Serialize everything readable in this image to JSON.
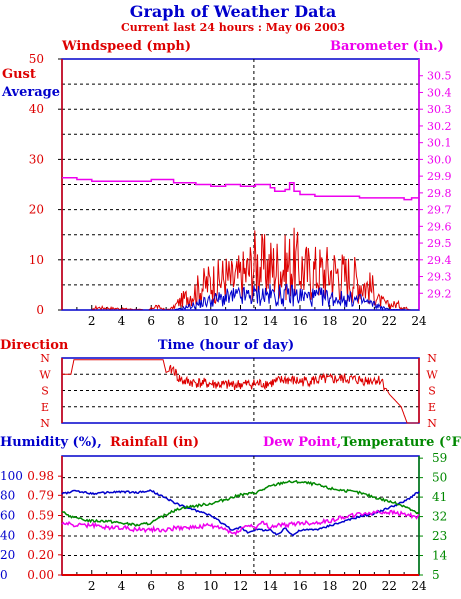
{
  "title": "Graph of Weather Data",
  "subtitle": "Current last 24 hours : May 06 2003",
  "colors": {
    "blue": "#0000cc",
    "red": "#dd0000",
    "magenta": "#ee00ee",
    "green": "#008800",
    "grid": "#000000",
    "frame": "#000000"
  },
  "chart_data": [
    {
      "type": "line",
      "name": "wind-baro",
      "labels": {
        "left": "Windspeed (mph)",
        "right": "Barometer (in.)",
        "xlabel": "Time (hour of day)"
      },
      "legend": [
        {
          "label": "Gust",
          "color": "#dd0000"
        },
        {
          "label": "Average",
          "color": "#0000cc"
        }
      ],
      "xlim": [
        0,
        24
      ],
      "xticks": [
        2,
        4,
        6,
        8,
        10,
        12,
        14,
        16,
        18,
        20,
        22,
        24
      ],
      "ylim_left": [
        0,
        50
      ],
      "yticks_left": [
        0,
        10,
        20,
        30,
        40,
        50
      ],
      "ylim_right": [
        29.1,
        30.6
      ],
      "yticks_right": [
        29.2,
        29.3,
        29.4,
        29.5,
        29.6,
        29.7,
        29.8,
        29.9,
        30.0,
        30.1,
        30.2,
        30.3,
        30.4,
        30.5
      ],
      "marker_hour": 12.9,
      "series": [
        {
          "name": "Gust",
          "color": "#dd0000",
          "axis": "left",
          "style": "spiky",
          "x": [
            0,
            2,
            2.3,
            5.8,
            6.3,
            7.0,
            7.5,
            7.8,
            8.5,
            9.0,
            9.5,
            10.0,
            10.5,
            11.0,
            11.5,
            12.0,
            12.5,
            13.0,
            13.5,
            14.0,
            14.5,
            15.0,
            15.5,
            16.0,
            16.5,
            17.0,
            17.5,
            18.0,
            18.5,
            19.0,
            19.5,
            20.0,
            20.5,
            21.0,
            21.3,
            22.0,
            22.5,
            23.0,
            23.5,
            24.0
          ],
          "y": [
            0,
            0,
            0.5,
            0,
            0.8,
            0,
            0.5,
            1.5,
            3,
            4,
            5,
            6,
            6,
            7,
            6,
            7,
            8,
            10,
            9,
            9,
            9,
            9,
            10,
            9,
            8,
            8,
            8,
            8,
            8,
            7,
            7,
            6,
            5,
            4,
            2,
            1,
            1.2,
            0.5,
            0,
            0
          ]
        },
        {
          "name": "Average",
          "color": "#0000cc",
          "axis": "left",
          "style": "spiky",
          "x": [
            0,
            7.5,
            8.0,
            8.5,
            9.0,
            9.5,
            10.0,
            10.5,
            11.0,
            11.5,
            12.0,
            12.5,
            13.0,
            13.5,
            14.0,
            14.5,
            15.0,
            15.5,
            16.0,
            16.5,
            17.0,
            17.5,
            18.0,
            18.5,
            19.0,
            19.5,
            20.0,
            20.5,
            21.0,
            21.5,
            22.0,
            24.0
          ],
          "y": [
            0,
            0,
            0.3,
            0.8,
            1.2,
            1.8,
            2.2,
            2.5,
            2.8,
            3.0,
            3.2,
            3.2,
            3.5,
            3.5,
            3.5,
            3.3,
            3.5,
            3.5,
            3.3,
            3.0,
            3.0,
            3.0,
            2.8,
            2.7,
            2.5,
            2.5,
            2.2,
            1.8,
            1.2,
            0.6,
            0.1,
            0
          ]
        },
        {
          "name": "Barometer",
          "color": "#ee00ee",
          "axis": "right",
          "style": "step",
          "x": [
            0,
            1,
            2,
            4,
            6,
            7.5,
            9,
            10,
            11,
            12,
            12.5,
            13,
            13.5,
            14,
            14.3,
            15,
            15.3,
            15.6,
            16,
            16.5,
            17,
            18,
            19,
            20,
            21,
            22,
            23,
            23.5,
            24
          ],
          "y": [
            29.89,
            29.88,
            29.87,
            29.87,
            29.88,
            29.86,
            29.85,
            29.84,
            29.85,
            29.84,
            29.84,
            29.85,
            29.85,
            29.83,
            29.81,
            29.82,
            29.86,
            29.81,
            29.79,
            29.79,
            29.78,
            29.78,
            29.78,
            29.77,
            29.77,
            29.77,
            29.76,
            29.77,
            29.77
          ]
        }
      ]
    },
    {
      "type": "line",
      "name": "direction",
      "labels": {
        "left": "Direction"
      },
      "xlim": [
        0,
        24
      ],
      "marker_hour": 12.9,
      "direction_labels": [
        "N",
        "W",
        "S",
        "E",
        "N"
      ],
      "series": [
        {
          "name": "Direction",
          "color": "#dd0000",
          "style": "jitter",
          "x": [
            0,
            0.6,
            0.8,
            6.8,
            7.0,
            7.5,
            7.8,
            8.2,
            9.5,
            11.0,
            12.5,
            14.0,
            14.5,
            15.0,
            16.0,
            17.5,
            19.0,
            20.5,
            21.0,
            21.5,
            22.0,
            22.8,
            23.2,
            24
          ],
          "y": [
            270,
            270,
            350,
            350,
            280,
            300,
            250,
            230,
            220,
            210,
            215,
            220,
            230,
            240,
            230,
            240,
            245,
            235,
            240,
            235,
            160,
            90,
            0,
            0
          ]
        }
      ]
    },
    {
      "type": "line",
      "name": "humidity-rain-temp",
      "labels": {
        "humidity": "Humidity (%),",
        "rainfall": "Rainfall (in)",
        "dewpoint": "Dew Point,",
        "temperature": "Temperature (°F)"
      },
      "xlim": [
        0,
        24
      ],
      "xticks": [
        2,
        4,
        6,
        8,
        10,
        12,
        14,
        16,
        18,
        20,
        22,
        24
      ],
      "ylim_humidity": [
        0,
        120
      ],
      "yticks_humidity": [
        0,
        20,
        40,
        60,
        80,
        100
      ],
      "ylim_rain": [
        0,
        1.18
      ],
      "yticks_rain": [
        0.0,
        0.2,
        0.39,
        0.59,
        0.79,
        0.98
      ],
      "rain_tick_labels": [
        "0.00",
        "0.20",
        "0.39",
        "0.59",
        "0.79",
        "0.98"
      ],
      "ylim_temp": [
        5,
        60
      ],
      "yticks_temp": [
        5,
        14,
        23,
        32,
        41,
        50,
        59
      ],
      "marker_hour": 12.9,
      "series": [
        {
          "name": "Humidity",
          "color": "#0000cc",
          "axis": "humidity",
          "x": [
            0,
            1,
            2,
            3,
            4,
            5,
            6,
            7,
            8,
            9,
            10,
            11,
            11.5,
            12,
            12.5,
            13,
            14,
            14.5,
            15,
            15.5,
            16,
            17,
            17.5,
            18,
            19,
            20,
            21,
            22,
            23,
            24
          ],
          "y": [
            82,
            85,
            82,
            83,
            84,
            83,
            85,
            77,
            70,
            65,
            60,
            50,
            45,
            48,
            43,
            46,
            45,
            40,
            48,
            40,
            45,
            46,
            47,
            50,
            54,
            59,
            62,
            68,
            74,
            84
          ]
        },
        {
          "name": "Temperature",
          "color": "#008800",
          "axis": "temp",
          "x": [
            0,
            1,
            2,
            3,
            4,
            5,
            6,
            7,
            8,
            9,
            10,
            11,
            12,
            13,
            14,
            15,
            16,
            17,
            18,
            19,
            20,
            21,
            22,
            23,
            24
          ],
          "y": [
            34,
            31,
            30,
            30,
            29,
            28,
            29,
            33,
            36,
            37,
            38,
            40,
            42,
            43,
            46,
            48,
            48,
            47,
            45,
            44,
            43,
            41,
            39,
            37,
            33
          ]
        },
        {
          "name": "Dew Point",
          "color": "#ee00ee",
          "axis": "temp",
          "x": [
            0,
            1,
            2,
            3,
            4,
            5,
            6,
            7,
            8,
            9,
            10,
            10.5,
            11,
            11.5,
            12,
            12.5,
            13,
            13.5,
            14,
            14.5,
            15,
            16,
            17,
            18,
            19,
            20,
            21,
            22,
            23,
            24
          ],
          "y": [
            29,
            28,
            28,
            27,
            27,
            26,
            26,
            26,
            27,
            27,
            28,
            27,
            26,
            24,
            26,
            28,
            27,
            29,
            27,
            28,
            28,
            29,
            29,
            30,
            32,
            33,
            34,
            34,
            33,
            32
          ]
        },
        {
          "name": "Rainfall",
          "color": "#dd0000",
          "axis": "rain",
          "x": [
            0,
            24
          ],
          "y": [
            0,
            0
          ]
        }
      ]
    }
  ]
}
